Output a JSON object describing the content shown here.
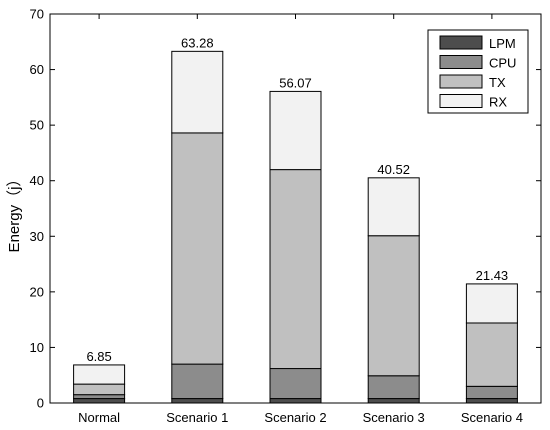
{
  "chart_data": {
    "type": "bar",
    "stacked": true,
    "categories": [
      "Normal",
      "Scenario 1",
      "Scenario 2",
      "Scenario 3",
      "Scenario 4"
    ],
    "series": [
      {
        "name": "LPM",
        "color": "#4d4d4d",
        "values": [
          0.8,
          0.8,
          0.8,
          0.8,
          0.8
        ]
      },
      {
        "name": "CPU",
        "color": "#8c8c8c",
        "values": [
          0.7,
          6.2,
          5.4,
          4.1,
          2.2
        ]
      },
      {
        "name": "TX",
        "color": "#c0c0c0",
        "values": [
          1.9,
          41.6,
          35.8,
          25.2,
          11.4
        ]
      },
      {
        "name": "RX",
        "color": "#f2f2f2",
        "values": [
          3.45,
          14.68,
          14.07,
          10.42,
          7.03
        ]
      }
    ],
    "totals": [
      "6.85",
      "63.28",
      "56.07",
      "40.52",
      "21.43"
    ],
    "ylabel": "Energy（j）",
    "xlabel": "",
    "ylim": [
      0,
      70
    ],
    "yticks": [
      0,
      10,
      20,
      30,
      40,
      50,
      60,
      70
    ],
    "grid": false,
    "legend_position": "top-right"
  }
}
